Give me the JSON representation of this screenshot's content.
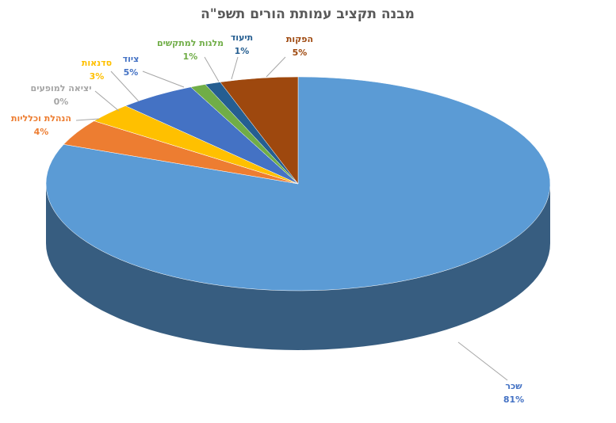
{
  "chart_data": {
    "type": "pie3d",
    "title": "מבנה תקציב עמותת הורים תשפ\"ה",
    "categories": [
      "שכר",
      "הנהלת וכלליות",
      "יציאה למופעים",
      "סדנאות",
      "ציוד",
      "מלגות למתקשים",
      "תיעוד",
      "הפקות"
    ],
    "values": [
      81,
      4,
      0,
      3,
      5,
      1,
      1,
      5
    ],
    "value_labels": [
      "81%",
      "4%",
      "0%",
      "3%",
      "5%",
      "1%",
      "1%",
      "5%"
    ],
    "colors": [
      "#5b9bd5",
      "#ed7d31",
      "#a5a5a5",
      "#ffc000",
      "#4472c4",
      "#70ad47",
      "#255e91",
      "#9e480e"
    ]
  }
}
